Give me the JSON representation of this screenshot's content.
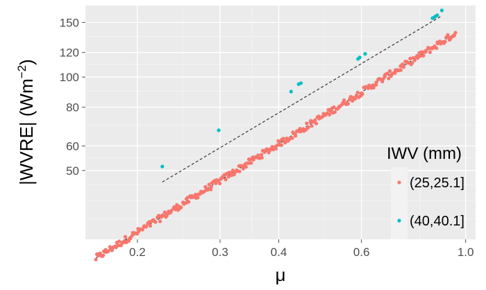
{
  "chart_data": {
    "type": "scatter",
    "xlabel": "μ",
    "ylabel": {
      "main": "|WVRE| (Wm",
      "superscript": "−2",
      "close": ")"
    },
    "x_scale": "log",
    "y_scale": "log",
    "xlim": [
      0.155,
      1.05
    ],
    "ylim": [
      30,
      170
    ],
    "x_ticks": [
      0.2,
      0.3,
      0.4,
      0.6,
      1.0
    ],
    "x_tick_labels": [
      "0.2",
      "0.3",
      "0.4",
      "0.6",
      "1.0"
    ],
    "y_ticks": [
      50,
      60,
      80,
      100,
      120,
      150
    ],
    "y_tick_labels": [
      "50",
      "60",
      "80",
      "100",
      "120",
      "150"
    ],
    "x_minor_ticks": [
      0.25,
      0.35,
      0.5,
      0.8
    ],
    "y_minor_ticks": [
      35,
      40,
      45,
      55,
      70,
      90,
      110,
      135
    ],
    "grid": true,
    "background": "#ebebeb",
    "legend": {
      "title": "IWV (mm)",
      "placement": "right",
      "entries": [
        "(25,25.1]",
        "(40,40.1]"
      ]
    },
    "series": [
      {
        "name": "(25,25.1]",
        "color": "#f8766d",
        "model": "power",
        "coef": 145,
        "exponent": 0.946,
        "x_range": [
          0.163,
          0.95
        ],
        "n_points": 340,
        "fit_line": {
          "color": "#333333",
          "dash": "dashed",
          "x_range": [
            0.163,
            0.95
          ]
        }
      },
      {
        "name": "(40,40.1]",
        "color": "#00bfc4",
        "x": [
          0.226,
          0.298,
          0.425,
          0.441,
          0.446,
          0.59,
          0.595,
          0.611,
          0.85,
          0.857,
          0.862,
          0.87,
          0.89
        ],
        "y": [
          51.5,
          67.4,
          89.8,
          94.9,
          95.6,
          114.4,
          115.7,
          118.8,
          154.8,
          155.7,
          156.9,
          158.2,
          164.0
        ],
        "fit_line": {
          "color": "#333333",
          "dash": "dashed",
          "x_range": [
            0.226,
            0.89
          ],
          "coef": 175,
          "exponent": 0.9
        }
      }
    ]
  }
}
